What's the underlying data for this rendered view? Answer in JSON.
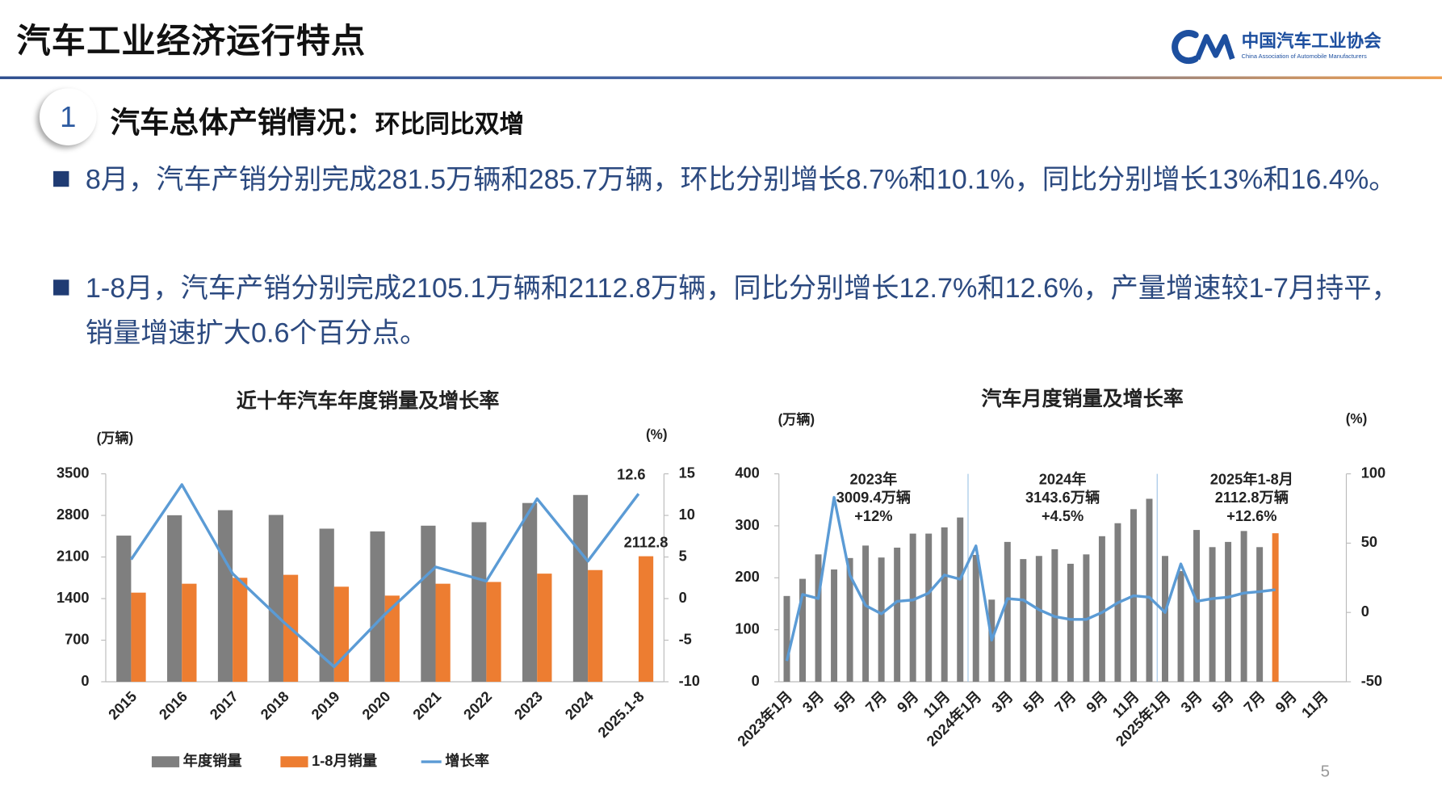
{
  "header": {
    "title": "汽车工业经济运行特点",
    "logo_name": "中国汽车工业协会",
    "logo_english": "China Association of Automobile Manufacturers"
  },
  "section": {
    "number": "1",
    "title": "汽车总体产销情况：",
    "subtitle": "环比同比双增"
  },
  "bullets": [
    "8月，汽车产销分别完成281.5万辆和285.7万辆，环比分别增长8.7%和10.1%，同比分别增长13%和16.4%。",
    "1-8月，汽车产销分别完成2105.1万辆和2112.8万辆，同比分别增长12.7%和12.6%，产量增速较1-7月持平，销量增速扩大0.6个百分点。"
  ],
  "chart_data": [
    {
      "type": "bar",
      "title": "近十年汽车年度销量及增长率",
      "y_label": "(万辆)",
      "y2_label": "(%)",
      "categories": [
        "2015",
        "2016",
        "2017",
        "2018",
        "2019",
        "2020",
        "2021",
        "2022",
        "2023",
        "2024",
        "2025.1-8"
      ],
      "bar_layout": "grouped",
      "legend": "bottom",
      "series": [
        {
          "name": "年度销量",
          "color": "#7f7f7f",
          "values": [
            2460,
            2803,
            2888,
            2808,
            2577,
            2531,
            2627,
            2686,
            3009,
            3144,
            null
          ]
        },
        {
          "name": "1-8月销量",
          "color": "#ed7d31",
          "label_last": true,
          "values": [
            1500,
            1650,
            1750,
            1800,
            1600,
            1450,
            1650,
            1680,
            1820,
            1880,
            2112.8
          ]
        },
        {
          "name": "增长率",
          "type": "line",
          "axis": "y2",
          "color": "#5b9bd5",
          "label_last": true,
          "values": [
            4.7,
            13.7,
            3,
            -2.8,
            -8.2,
            -1.9,
            3.8,
            2.1,
            12,
            4.5,
            12.6
          ]
        }
      ],
      "ylim": [
        0,
        3500
      ],
      "yticks": [
        0,
        700,
        1400,
        2100,
        2800,
        3500
      ],
      "y2lim": [
        -10,
        15
      ],
      "y2ticks": [
        -10,
        -5,
        0,
        5,
        10,
        15
      ]
    },
    {
      "type": "bar",
      "title": "汽车月度销量及增长率",
      "y_label": "(万辆)",
      "y2_label": "(%)",
      "categories": [
        "2023年1月",
        null,
        "3月",
        null,
        "5月",
        null,
        "7月",
        null,
        "9月",
        null,
        "11月",
        null,
        "2024年1月",
        null,
        "3月",
        null,
        "5月",
        null,
        "7月",
        null,
        "9月",
        null,
        "11月",
        null,
        "2025年1月",
        null,
        "3月",
        null,
        "5月",
        null,
        "7月",
        null,
        "9月",
        null,
        "11月",
        null
      ],
      "bar_layout": "overlay",
      "series": [
        {
          "color": "#7f7f7f",
          "values": [
            165,
            198,
            245,
            216,
            238,
            262,
            239,
            258,
            285,
            285,
            297,
            316,
            244,
            158,
            269,
            236,
            242,
            255,
            227,
            245,
            280,
            305,
            332,
            352,
            242,
            213,
            292,
            259,
            269,
            290,
            259,
            null,
            null,
            null,
            null,
            null
          ]
        },
        {
          "color": "#ed7d31",
          "values": [
            null,
            null,
            null,
            null,
            null,
            null,
            null,
            null,
            null,
            null,
            null,
            null,
            null,
            null,
            null,
            null,
            null,
            null,
            null,
            null,
            null,
            null,
            null,
            null,
            null,
            null,
            null,
            null,
            null,
            null,
            null,
            285.7,
            null,
            null,
            null,
            null
          ]
        },
        {
          "type": "line",
          "axis": "y2",
          "color": "#5b9bd5",
          "values": [
            -35,
            13,
            10,
            83,
            27,
            5,
            -1,
            8,
            9,
            14,
            27,
            24,
            48,
            -20,
            10,
            9,
            2,
            -3,
            -5,
            -5,
            0,
            7,
            12,
            11,
            0,
            35,
            8,
            10,
            11,
            14,
            15,
            16.4,
            null,
            null,
            null,
            null
          ]
        }
      ],
      "annotations": [
        {
          "lines": [
            "2023年",
            "3009.4万辆",
            "+12%"
          ]
        },
        {
          "lines": [
            "2024年",
            "3143.6万辆",
            "+4.5%"
          ]
        },
        {
          "lines": [
            "2025年1-8月",
            "2112.8万辆",
            "+12.6%"
          ]
        }
      ],
      "ylim": [
        0,
        400
      ],
      "yticks": [
        0,
        100,
        200,
        300,
        400
      ],
      "y2lim": [
        -50,
        100
      ],
      "y2ticks": [
        -50,
        0,
        50,
        100
      ]
    }
  ],
  "page_number": "5"
}
